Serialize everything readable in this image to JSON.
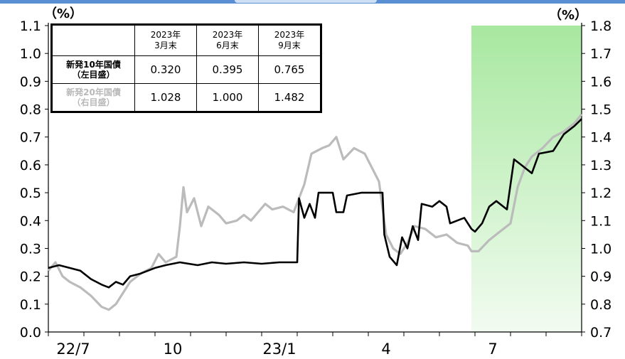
{
  "chart_data": {
    "type": "line",
    "left_axis": {
      "unit_label": "（%）",
      "ylim": [
        0.0,
        1.1
      ],
      "ticks": [
        "0.0",
        "0.1",
        "0.2",
        "0.3",
        "0.4",
        "0.5",
        "0.6",
        "0.7",
        "0.8",
        "0.9",
        "1.0",
        "1.1"
      ]
    },
    "right_axis": {
      "unit_label": "（%）",
      "ylim": [
        0.7,
        1.8
      ],
      "ticks": [
        "0.7",
        "0.8",
        "0.9",
        "1.0",
        "1.1",
        "1.2",
        "1.3",
        "1.4",
        "1.5",
        "1.6",
        "1.7",
        "1.8"
      ]
    },
    "x_axis": {
      "labels": [
        "22/7",
        "10",
        "23/1",
        "4",
        "7"
      ],
      "month_count": 15
    },
    "shaded_region": {
      "from_month": 11.9,
      "to_month": 15,
      "color": "#a8e8a0"
    },
    "series": [
      {
        "name": "新発10年国債（左目盛）",
        "axis": "left",
        "color": "#000000",
        "points": [
          [
            0,
            0.23
          ],
          [
            0.3,
            0.24
          ],
          [
            0.6,
            0.23
          ],
          [
            0.9,
            0.22
          ],
          [
            1.2,
            0.19
          ],
          [
            1.5,
            0.17
          ],
          [
            1.7,
            0.16
          ],
          [
            1.9,
            0.18
          ],
          [
            2.1,
            0.17
          ],
          [
            2.3,
            0.2
          ],
          [
            2.6,
            0.21
          ],
          [
            3.0,
            0.23
          ],
          [
            3.3,
            0.24
          ],
          [
            3.7,
            0.25
          ],
          [
            4.2,
            0.24
          ],
          [
            4.6,
            0.25
          ],
          [
            5.0,
            0.245
          ],
          [
            5.5,
            0.25
          ],
          [
            6.0,
            0.245
          ],
          [
            6.5,
            0.25
          ],
          [
            7.0,
            0.25
          ],
          [
            7.05,
            0.48
          ],
          [
            7.2,
            0.41
          ],
          [
            7.35,
            0.46
          ],
          [
            7.5,
            0.41
          ],
          [
            7.6,
            0.5
          ],
          [
            8.0,
            0.5
          ],
          [
            8.1,
            0.43
          ],
          [
            8.3,
            0.43
          ],
          [
            8.4,
            0.49
          ],
          [
            8.8,
            0.5
          ],
          [
            9.4,
            0.5
          ],
          [
            9.45,
            0.35
          ],
          [
            9.6,
            0.27
          ],
          [
            9.8,
            0.24
          ],
          [
            9.95,
            0.34
          ],
          [
            10.1,
            0.3
          ],
          [
            10.25,
            0.38
          ],
          [
            10.4,
            0.33
          ],
          [
            10.5,
            0.46
          ],
          [
            10.8,
            0.45
          ],
          [
            11.0,
            0.47
          ],
          [
            11.2,
            0.45
          ],
          [
            11.3,
            0.39
          ],
          [
            11.5,
            0.4
          ],
          [
            11.7,
            0.41
          ],
          [
            11.9,
            0.37
          ],
          [
            12.0,
            0.36
          ],
          [
            12.2,
            0.39
          ],
          [
            12.4,
            0.45
          ],
          [
            12.6,
            0.47
          ],
          [
            12.9,
            0.44
          ],
          [
            13.0,
            0.53
          ],
          [
            13.1,
            0.62
          ],
          [
            13.3,
            0.6
          ],
          [
            13.6,
            0.57
          ],
          [
            13.8,
            0.64
          ],
          [
            14.2,
            0.65
          ],
          [
            14.5,
            0.71
          ],
          [
            14.8,
            0.74
          ],
          [
            15.0,
            0.765
          ]
        ]
      },
      {
        "name": "新発20年国債（右目盛）",
        "axis": "right",
        "color": "#bbbbbb",
        "points": [
          [
            0,
            0.92
          ],
          [
            0.2,
            0.95
          ],
          [
            0.4,
            0.9
          ],
          [
            0.6,
            0.88
          ],
          [
            0.9,
            0.86
          ],
          [
            1.2,
            0.83
          ],
          [
            1.5,
            0.79
          ],
          [
            1.7,
            0.78
          ],
          [
            1.9,
            0.8
          ],
          [
            2.1,
            0.84
          ],
          [
            2.3,
            0.88
          ],
          [
            2.6,
            0.91
          ],
          [
            2.9,
            0.93
          ],
          [
            3.1,
            0.98
          ],
          [
            3.3,
            0.95
          ],
          [
            3.6,
            0.97
          ],
          [
            3.7,
            1.08
          ],
          [
            3.8,
            1.22
          ],
          [
            3.9,
            1.13
          ],
          [
            4.1,
            1.18
          ],
          [
            4.3,
            1.08
          ],
          [
            4.5,
            1.15
          ],
          [
            4.8,
            1.12
          ],
          [
            5.0,
            1.09
          ],
          [
            5.3,
            1.1
          ],
          [
            5.5,
            1.12
          ],
          [
            5.7,
            1.1
          ],
          [
            5.9,
            1.13
          ],
          [
            6.1,
            1.16
          ],
          [
            6.3,
            1.14
          ],
          [
            6.6,
            1.15
          ],
          [
            6.9,
            1.13
          ],
          [
            7.2,
            1.23
          ],
          [
            7.4,
            1.34
          ],
          [
            7.7,
            1.36
          ],
          [
            7.9,
            1.37
          ],
          [
            8.1,
            1.4
          ],
          [
            8.3,
            1.32
          ],
          [
            8.6,
            1.36
          ],
          [
            8.9,
            1.34
          ],
          [
            9.1,
            1.29
          ],
          [
            9.3,
            1.24
          ],
          [
            9.5,
            1.05
          ],
          [
            9.7,
            1.0
          ],
          [
            9.9,
            0.98
          ],
          [
            10.1,
            1.02
          ],
          [
            10.3,
            1.08
          ],
          [
            10.6,
            1.07
          ],
          [
            10.9,
            1.04
          ],
          [
            11.2,
            1.05
          ],
          [
            11.5,
            1.02
          ],
          [
            11.8,
            1.01
          ],
          [
            11.9,
            0.99
          ],
          [
            12.1,
            0.99
          ],
          [
            12.4,
            1.03
          ],
          [
            12.7,
            1.06
          ],
          [
            13.0,
            1.09
          ],
          [
            13.2,
            1.22
          ],
          [
            13.4,
            1.29
          ],
          [
            13.6,
            1.33
          ],
          [
            13.9,
            1.36
          ],
          [
            14.2,
            1.4
          ],
          [
            14.5,
            1.42
          ],
          [
            14.8,
            1.45
          ],
          [
            15.0,
            1.482
          ]
        ]
      }
    ]
  },
  "table": {
    "headers": [
      [
        "2023年",
        "3月末"
      ],
      [
        "2023年",
        "6月末"
      ],
      [
        "2023年",
        "9月末"
      ]
    ],
    "rows": [
      {
        "label_line1": "新発10年国債",
        "label_line2": "（左目盛）",
        "values": [
          "0.320",
          "0.395",
          "0.765"
        ]
      },
      {
        "label_line1": "新発20年国債",
        "label_line2": "（右目盛）",
        "values": [
          "1.028",
          "1.000",
          "1.482"
        ]
      }
    ]
  }
}
